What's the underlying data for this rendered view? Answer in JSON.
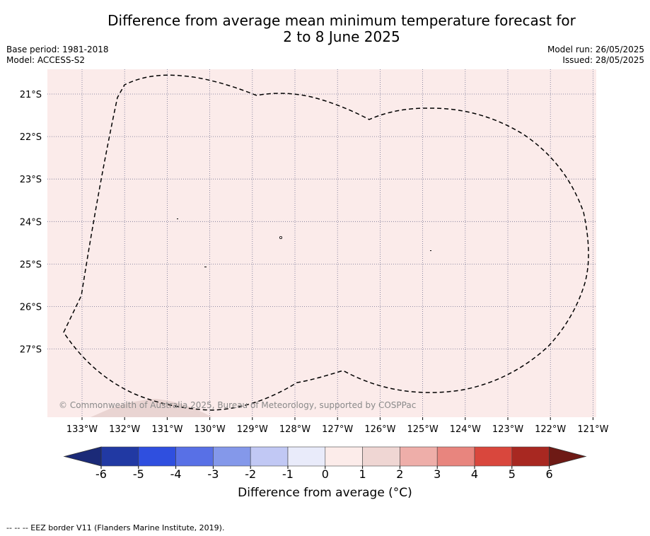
{
  "title": {
    "line1": "Difference from average mean minimum temperature forecast for",
    "line2": "2 to 8 June 2025"
  },
  "meta": {
    "base_period": "Base period: 1981-2018",
    "model": "Model: ACCESS-S2",
    "model_run": "Model run: 26/05/2025",
    "issued": "Issued: 28/05/2025"
  },
  "map": {
    "fill_color": "#fbebea",
    "lon_ticks": [
      "133°W",
      "132°W",
      "131°W",
      "130°W",
      "129°W",
      "128°W",
      "127°W",
      "126°W",
      "125°W",
      "124°W",
      "123°W",
      "122°W",
      "121°W"
    ],
    "lat_ticks": [
      "21°S",
      "22°S",
      "23°S",
      "24°S",
      "25°S",
      "26°S",
      "27°S"
    ],
    "copyright": "© Commonwealth of Australia 2025, Bureau of Meteorology, supported by COSPPac"
  },
  "colorbar": {
    "ticks": [
      "-6",
      "-5",
      "-4",
      "-3",
      "-2",
      "-1",
      "0",
      "1",
      "2",
      "3",
      "4",
      "5",
      "6"
    ],
    "colors": [
      "#2139a3",
      "#2f4fdf",
      "#5870e6",
      "#8498ea",
      "#c1c8f4",
      "#e9ebfa",
      "#fcecea",
      "#efd6d3",
      "#eeaea9",
      "#e8857e",
      "#d9473d",
      "#a82821"
    ],
    "extend_low_color": "#1b2a78",
    "extend_high_color": "#6e1a15",
    "label": "Difference from average (°C)"
  },
  "footer": "-- -- -- EEZ border V11 (Flanders Marine Institute, 2019)."
}
